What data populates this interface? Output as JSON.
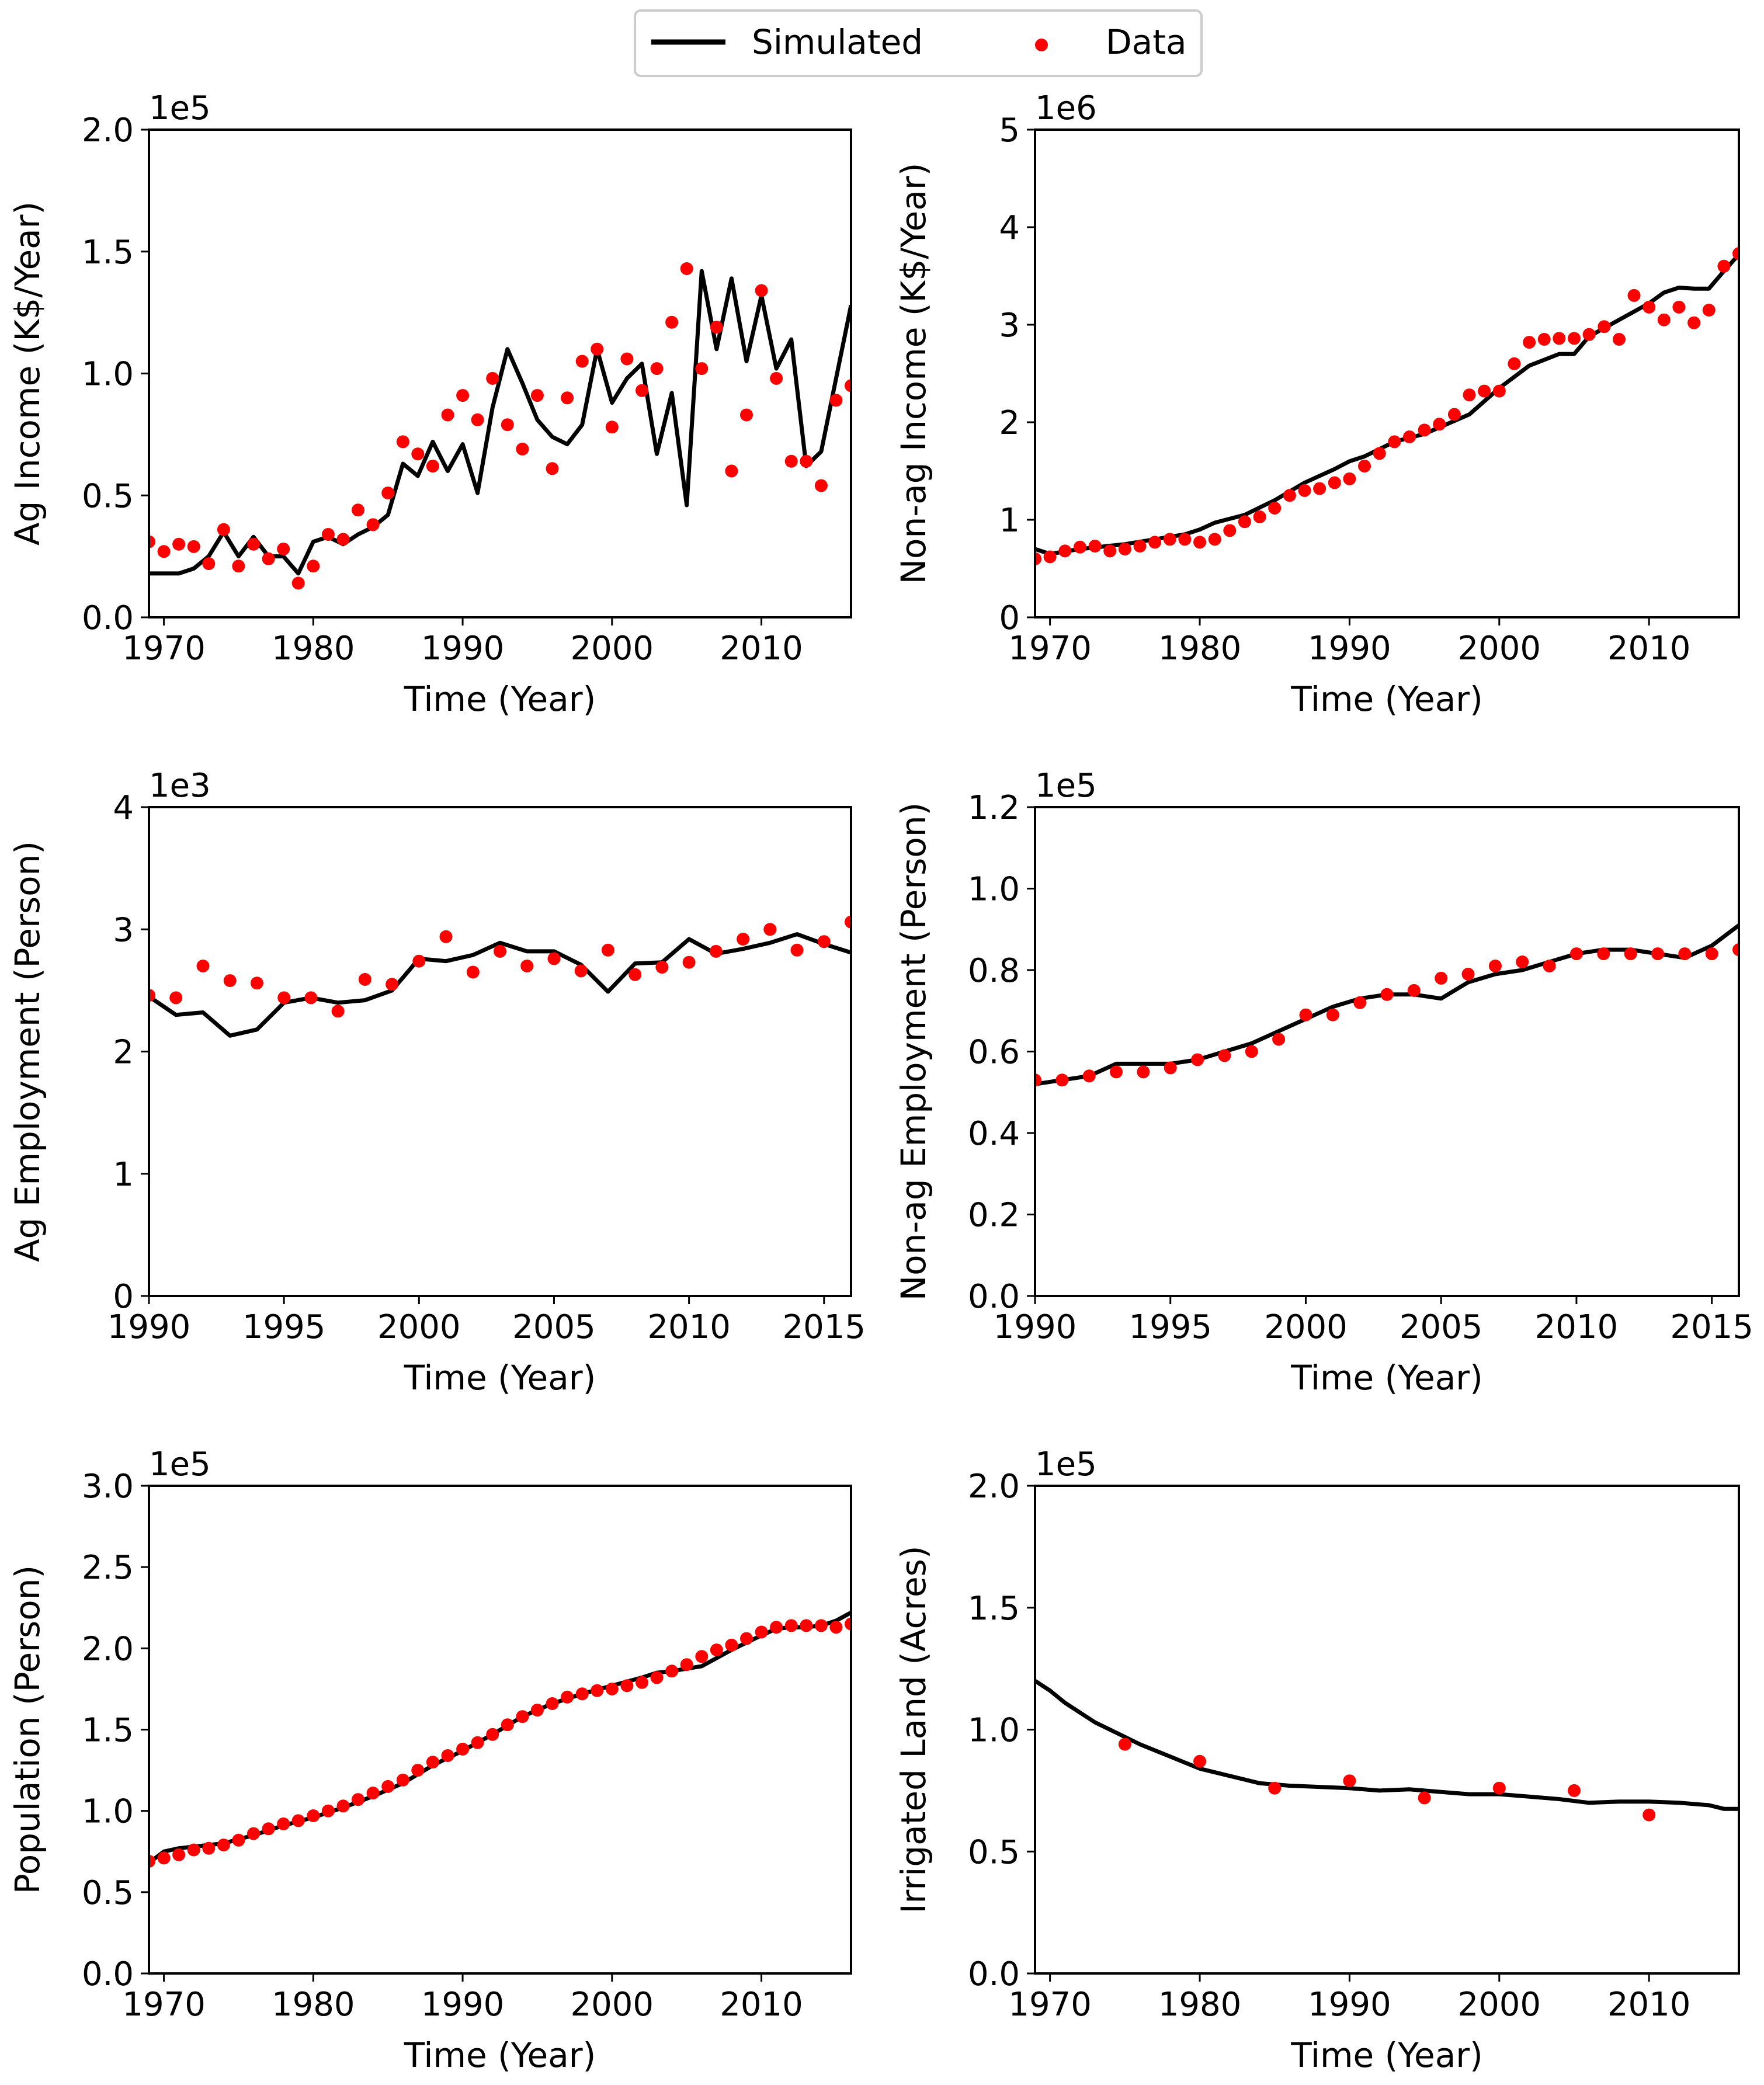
{
  "legend": {
    "items": [
      {
        "label": "Simulated",
        "kind": "line",
        "color": "#000000"
      },
      {
        "label": "Data",
        "kind": "marker",
        "color": "#ff0000"
      }
    ]
  },
  "chart_data": [
    {
      "id": "ag-income",
      "type": "line",
      "xlabel": "Time (Year)",
      "ylabel": "Ag Income (K$/Year)",
      "exponent_label": "1e5",
      "xlim": [
        1969,
        2016
      ],
      "ylim": [
        0,
        2.0
      ],
      "xticks": [
        1970,
        1980,
        1990,
        2000,
        2010
      ],
      "yticks": [
        0.0,
        0.5,
        1.0,
        1.5,
        2.0
      ],
      "ytick_labels": [
        "0.0",
        "0.5",
        "1.0",
        "1.5",
        "2.0"
      ],
      "series": [
        {
          "name": "Simulated",
          "x": [
            1969,
            1970,
            1971,
            1972,
            1973,
            1974,
            1975,
            1976,
            1977,
            1978,
            1979,
            1980,
            1981,
            1982,
            1983,
            1984,
            1985,
            1986,
            1987,
            1988,
            1989,
            1990,
            1991,
            1992,
            1993,
            1994,
            1995,
            1996,
            1997,
            1998,
            1999,
            2000,
            2001,
            2002,
            2003,
            2004,
            2005,
            2006,
            2007,
            2008,
            2009,
            2010,
            2011,
            2012,
            2013,
            2014,
            2015,
            2016
          ],
          "y": [
            0.18,
            0.18,
            0.18,
            0.2,
            0.25,
            0.35,
            0.25,
            0.33,
            0.25,
            0.25,
            0.18,
            0.31,
            0.33,
            0.3,
            0.34,
            0.37,
            0.42,
            0.63,
            0.58,
            0.72,
            0.6,
            0.71,
            0.51,
            0.86,
            1.1,
            0.96,
            0.81,
            0.74,
            0.71,
            0.79,
            1.1,
            0.88,
            0.98,
            1.04,
            0.67,
            0.92,
            0.46,
            1.42,
            1.1,
            1.39,
            1.05,
            1.32,
            1.02,
            1.14,
            0.62,
            0.68,
            0.98,
            1.28
          ]
        },
        {
          "name": "Data",
          "x": [
            1969,
            1970,
            1971,
            1972,
            1973,
            1974,
            1975,
            1976,
            1977,
            1978,
            1979,
            1980,
            1981,
            1982,
            1983,
            1984,
            1985,
            1986,
            1987,
            1988,
            1989,
            1990,
            1991,
            1992,
            1993,
            1994,
            1995,
            1996,
            1997,
            1998,
            1999,
            2000,
            2001,
            2002,
            2003,
            2004,
            2005,
            2006,
            2007,
            2008,
            2009,
            2010,
            2011,
            2012,
            2013,
            2014,
            2015,
            2016
          ],
          "y": [
            0.31,
            0.27,
            0.3,
            0.29,
            0.22,
            0.36,
            0.21,
            0.3,
            0.24,
            0.28,
            0.14,
            0.21,
            0.34,
            0.32,
            0.44,
            0.38,
            0.51,
            0.72,
            0.67,
            0.62,
            0.83,
            0.91,
            0.81,
            0.98,
            0.79,
            0.69,
            0.91,
            0.61,
            0.9,
            1.05,
            1.1,
            0.78,
            1.06,
            0.93,
            1.02,
            1.21,
            1.43,
            1.02,
            1.19,
            0.6,
            0.83,
            1.34,
            0.98,
            0.64,
            0.64,
            0.54,
            0.89,
            0.95
          ]
        }
      ]
    },
    {
      "id": "non-ag-income",
      "type": "line",
      "xlabel": "Time (Year)",
      "ylabel": "Non-ag Income (K$/Year)",
      "exponent_label": "1e6",
      "xlim": [
        1969,
        2016
      ],
      "ylim": [
        0,
        5
      ],
      "xticks": [
        1970,
        1980,
        1990,
        2000,
        2010
      ],
      "yticks": [
        0,
        1,
        2,
        3,
        4,
        5
      ],
      "ytick_labels": [
        "0",
        "1",
        "2",
        "3",
        "4",
        "5"
      ],
      "series": [
        {
          "name": "Simulated",
          "x": [
            1969,
            1970,
            1972,
            1975,
            1977,
            1979,
            1980,
            1981,
            1983,
            1985,
            1987,
            1989,
            1990,
            1991,
            1993,
            1995,
            1998,
            2000,
            2002,
            2004,
            2005,
            2006,
            2008,
            2010,
            2011,
            2012,
            2013,
            2014,
            2015,
            2016
          ],
          "y": [
            0.7,
            0.65,
            0.7,
            0.75,
            0.8,
            0.85,
            0.9,
            0.97,
            1.05,
            1.2,
            1.38,
            1.52,
            1.6,
            1.65,
            1.8,
            1.88,
            2.08,
            2.35,
            2.58,
            2.7,
            2.7,
            2.88,
            3.05,
            3.22,
            3.33,
            3.38,
            3.37,
            3.37,
            3.55,
            3.72
          ]
        },
        {
          "name": "Data",
          "x": [
            1969,
            1970,
            1971,
            1972,
            1973,
            1974,
            1975,
            1976,
            1977,
            1978,
            1979,
            1980,
            1981,
            1982,
            1983,
            1984,
            1985,
            1986,
            1987,
            1988,
            1989,
            1990,
            1991,
            1992,
            1993,
            1994,
            1995,
            1996,
            1997,
            1998,
            1999,
            2000,
            2001,
            2002,
            2003,
            2004,
            2005,
            2006,
            2007,
            2008,
            2009,
            2010,
            2011,
            2012,
            2013,
            2014,
            2015,
            2016
          ],
          "y": [
            0.6,
            0.62,
            0.68,
            0.72,
            0.73,
            0.68,
            0.7,
            0.73,
            0.77,
            0.8,
            0.8,
            0.77,
            0.8,
            0.89,
            0.98,
            1.03,
            1.12,
            1.25,
            1.3,
            1.32,
            1.38,
            1.42,
            1.55,
            1.68,
            1.8,
            1.85,
            1.92,
            1.98,
            2.08,
            2.28,
            2.32,
            2.32,
            2.6,
            2.82,
            2.85,
            2.86,
            2.86,
            2.9,
            2.98,
            2.85,
            3.3,
            3.18,
            3.05,
            3.18,
            3.02,
            3.15,
            3.6,
            3.73
          ]
        }
      ]
    },
    {
      "id": "ag-employment",
      "type": "line",
      "xlabel": "Time (Year)",
      "ylabel": "Ag Employment (Person)",
      "exponent_label": "1e3",
      "xlim": [
        1990,
        2016
      ],
      "ylim": [
        0,
        4
      ],
      "xticks": [
        1990,
        1995,
        2000,
        2005,
        2010,
        2015
      ],
      "yticks": [
        0,
        1,
        2,
        3,
        4
      ],
      "ytick_labels": [
        "0",
        "1",
        "2",
        "3",
        "4"
      ],
      "series": [
        {
          "name": "Simulated",
          "x": [
            1990,
            1991,
            1992,
            1993,
            1994,
            1995,
            1996,
            1997,
            1998,
            1999,
            2000,
            2001,
            2002,
            2003,
            2004,
            2005,
            2006,
            2007,
            2008,
            2009,
            2010,
            2011,
            2012,
            2013,
            2014,
            2015,
            2016
          ],
          "y": [
            2.45,
            2.3,
            2.32,
            2.13,
            2.18,
            2.4,
            2.44,
            2.4,
            2.42,
            2.5,
            2.76,
            2.74,
            2.79,
            2.89,
            2.82,
            2.82,
            2.71,
            2.49,
            2.72,
            2.73,
            2.92,
            2.8,
            2.84,
            2.89,
            2.96,
            2.88,
            2.81
          ]
        },
        {
          "name": "Data",
          "x": [
            1990,
            1991,
            1992,
            1993,
            1994,
            1995,
            1996,
            1997,
            1998,
            1999,
            2000,
            2001,
            2002,
            2003,
            2004,
            2005,
            2006,
            2007,
            2008,
            2009,
            2010,
            2011,
            2012,
            2013,
            2014,
            2015,
            2016
          ],
          "y": [
            2.46,
            2.44,
            2.7,
            2.58,
            2.56,
            2.44,
            2.44,
            2.33,
            2.59,
            2.55,
            2.74,
            2.94,
            2.65,
            2.82,
            2.7,
            2.76,
            2.66,
            2.83,
            2.63,
            2.69,
            2.73,
            2.82,
            2.92,
            3.0,
            2.83,
            2.9,
            3.06
          ]
        }
      ]
    },
    {
      "id": "non-ag-employment",
      "type": "line",
      "xlabel": "Time (Year)",
      "ylabel": "Non-ag Employment (Person)",
      "exponent_label": "1e5",
      "xlim": [
        1990,
        2016
      ],
      "ylim": [
        0,
        1.2
      ],
      "xticks": [
        1990,
        1995,
        2000,
        2005,
        2010,
        2015
      ],
      "yticks": [
        0.0,
        0.2,
        0.4,
        0.6,
        0.8,
        1.0,
        1.2
      ],
      "ytick_labels": [
        "0.0",
        "0.2",
        "0.4",
        "0.6",
        "0.8",
        "1.0",
        "1.2"
      ],
      "series": [
        {
          "name": "Simulated",
          "x": [
            1990,
            1991,
            1992,
            1993,
            1994,
            1995,
            1996,
            1997,
            1998,
            1999,
            2000,
            2001,
            2002,
            2003,
            2004,
            2005,
            2006,
            2007,
            2008,
            2009,
            2010,
            2011,
            2012,
            2013,
            2014,
            2015,
            2016
          ],
          "y": [
            0.52,
            0.53,
            0.54,
            0.57,
            0.57,
            0.57,
            0.58,
            0.6,
            0.62,
            0.65,
            0.68,
            0.71,
            0.73,
            0.74,
            0.74,
            0.73,
            0.77,
            0.79,
            0.8,
            0.82,
            0.84,
            0.85,
            0.85,
            0.84,
            0.83,
            0.86,
            0.91
          ]
        },
        {
          "name": "Data",
          "x": [
            1990,
            1991,
            1992,
            1993,
            1994,
            1995,
            1996,
            1997,
            1998,
            1999,
            2000,
            2001,
            2002,
            2003,
            2004,
            2005,
            2006,
            2007,
            2008,
            2009,
            2010,
            2011,
            2012,
            2013,
            2014,
            2015,
            2016
          ],
          "y": [
            0.53,
            0.53,
            0.54,
            0.55,
            0.55,
            0.56,
            0.58,
            0.59,
            0.6,
            0.63,
            0.69,
            0.69,
            0.72,
            0.74,
            0.75,
            0.78,
            0.79,
            0.81,
            0.82,
            0.81,
            0.84,
            0.84,
            0.84,
            0.84,
            0.84,
            0.84,
            0.85
          ]
        }
      ]
    },
    {
      "id": "population",
      "type": "line",
      "xlabel": "Time (Year)",
      "ylabel": "Population (Person)",
      "exponent_label": "1e5",
      "xlim": [
        1969,
        2016
      ],
      "ylim": [
        0,
        3.0
      ],
      "xticks": [
        1970,
        1980,
        1990,
        2000,
        2010
      ],
      "yticks": [
        0.0,
        0.5,
        1.0,
        1.5,
        2.0,
        2.5,
        3.0
      ],
      "ytick_labels": [
        "0.0",
        "0.5",
        "1.0",
        "1.5",
        "2.0",
        "2.5",
        "3.0"
      ],
      "series": [
        {
          "name": "Simulated",
          "x": [
            1969,
            1970,
            1971,
            1972,
            1974,
            1976,
            1978,
            1980,
            1982,
            1984,
            1986,
            1988,
            1990,
            1992,
            1994,
            1996,
            1998,
            2000,
            2002,
            2003,
            2004,
            2006,
            2008,
            2010,
            2011,
            2012,
            2013,
            2014,
            2015,
            2016
          ],
          "y": [
            0.68,
            0.75,
            0.77,
            0.78,
            0.8,
            0.85,
            0.91,
            0.96,
            1.02,
            1.09,
            1.17,
            1.28,
            1.37,
            1.47,
            1.58,
            1.66,
            1.72,
            1.77,
            1.82,
            1.85,
            1.86,
            1.89,
            1.99,
            2.08,
            2.12,
            2.13,
            2.13,
            2.14,
            2.17,
            2.22
          ]
        },
        {
          "name": "Data",
          "x": [
            1969,
            1970,
            1971,
            1972,
            1973,
            1974,
            1975,
            1976,
            1977,
            1978,
            1979,
            1980,
            1981,
            1982,
            1983,
            1984,
            1985,
            1986,
            1987,
            1988,
            1989,
            1990,
            1991,
            1992,
            1993,
            1994,
            1995,
            1996,
            1997,
            1998,
            1999,
            2000,
            2001,
            2002,
            2003,
            2004,
            2005,
            2006,
            2007,
            2008,
            2009,
            2010,
            2011,
            2012,
            2013,
            2014,
            2015,
            2016
          ],
          "y": [
            0.69,
            0.71,
            0.73,
            0.76,
            0.77,
            0.79,
            0.82,
            0.86,
            0.89,
            0.92,
            0.94,
            0.97,
            1.0,
            1.03,
            1.07,
            1.11,
            1.15,
            1.19,
            1.25,
            1.3,
            1.34,
            1.38,
            1.42,
            1.47,
            1.53,
            1.58,
            1.62,
            1.66,
            1.7,
            1.72,
            1.74,
            1.75,
            1.77,
            1.79,
            1.82,
            1.86,
            1.9,
            1.95,
            1.99,
            2.02,
            2.06,
            2.1,
            2.13,
            2.14,
            2.14,
            2.14,
            2.13,
            2.15
          ]
        }
      ]
    },
    {
      "id": "irrigated-land",
      "type": "line",
      "xlabel": "Time (Year)",
      "ylabel": "Irrigated Land (Acres)",
      "exponent_label": "1e5",
      "xlim": [
        1969,
        2016
      ],
      "ylim": [
        0,
        2.0
      ],
      "xticks": [
        1970,
        1980,
        1990,
        2000,
        2010
      ],
      "yticks": [
        0.0,
        0.5,
        1.0,
        1.5,
        2.0
      ],
      "ytick_labels": [
        "0.0",
        "0.5",
        "1.0",
        "1.5",
        "2.0"
      ],
      "series": [
        {
          "name": "Simulated",
          "x": [
            1969,
            1970,
            1971,
            1972,
            1973,
            1974,
            1975,
            1976,
            1978,
            1980,
            1982,
            1984,
            1986,
            1988,
            1990,
            1992,
            1994,
            1996,
            1998,
            2000,
            2002,
            2004,
            2006,
            2008,
            2010,
            2012,
            2014,
            2015,
            2016
          ],
          "y": [
            1.2,
            1.16,
            1.11,
            1.07,
            1.03,
            1.0,
            0.97,
            0.94,
            0.89,
            0.84,
            0.81,
            0.78,
            0.77,
            0.765,
            0.76,
            0.75,
            0.755,
            0.745,
            0.735,
            0.735,
            0.725,
            0.715,
            0.7,
            0.705,
            0.705,
            0.7,
            0.69,
            0.675,
            0.675
          ]
        },
        {
          "name": "Data",
          "x": [
            1975,
            1980,
            1985,
            1990,
            1995,
            2000,
            2005,
            2010
          ],
          "y": [
            0.94,
            0.87,
            0.76,
            0.79,
            0.72,
            0.76,
            0.75,
            0.65
          ]
        }
      ]
    }
  ]
}
